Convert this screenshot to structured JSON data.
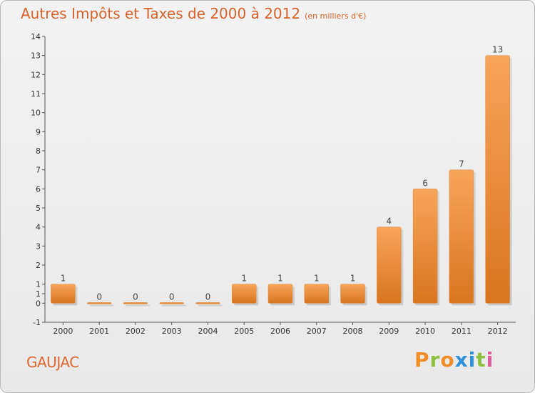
{
  "title": {
    "main": "Autres Impôts et Taxes de 2000 à 2012",
    "unit": "(en milliers d'€)"
  },
  "commune": "GAUJAC",
  "brand": {
    "letters": [
      "P",
      "r",
      "o",
      "x",
      "i",
      "t",
      "i"
    ],
    "colors": [
      "#f28c28",
      "#8fbf3f",
      "#f28c28",
      "#2f8fd8",
      "#2f8fd8",
      "#8fbf3f",
      "#e05b9a"
    ]
  },
  "colors": {
    "bar_light": "#f7a55a",
    "bar_dark": "#d9751f",
    "title": "#d9622b"
  },
  "chart_data": {
    "type": "bar",
    "categories": [
      "2000",
      "2001",
      "2002",
      "2003",
      "2004",
      "2005",
      "2006",
      "2007",
      "2008",
      "2009",
      "2010",
      "2011",
      "2012"
    ],
    "values": [
      1,
      0,
      0,
      0,
      0,
      1,
      1,
      1,
      1,
      4,
      6,
      7,
      13
    ],
    "data_labels": [
      "1",
      "0",
      "0",
      "0",
      "0",
      "1",
      "1",
      "1",
      "1",
      "4",
      "6",
      "7",
      "13"
    ],
    "ylim": [
      -1,
      14
    ],
    "yticks": [
      "-1",
      "0",
      "1",
      "1",
      "2",
      "3",
      "4",
      "5",
      "6",
      "7",
      "8",
      "9",
      "10",
      "11",
      "12",
      "13",
      "14"
    ],
    "ytick_values": [
      -1,
      0,
      0.5,
      1,
      2,
      3,
      4,
      5,
      6,
      7,
      8,
      9,
      10,
      11,
      12,
      13,
      14
    ],
    "grid": false,
    "legend": "none"
  }
}
